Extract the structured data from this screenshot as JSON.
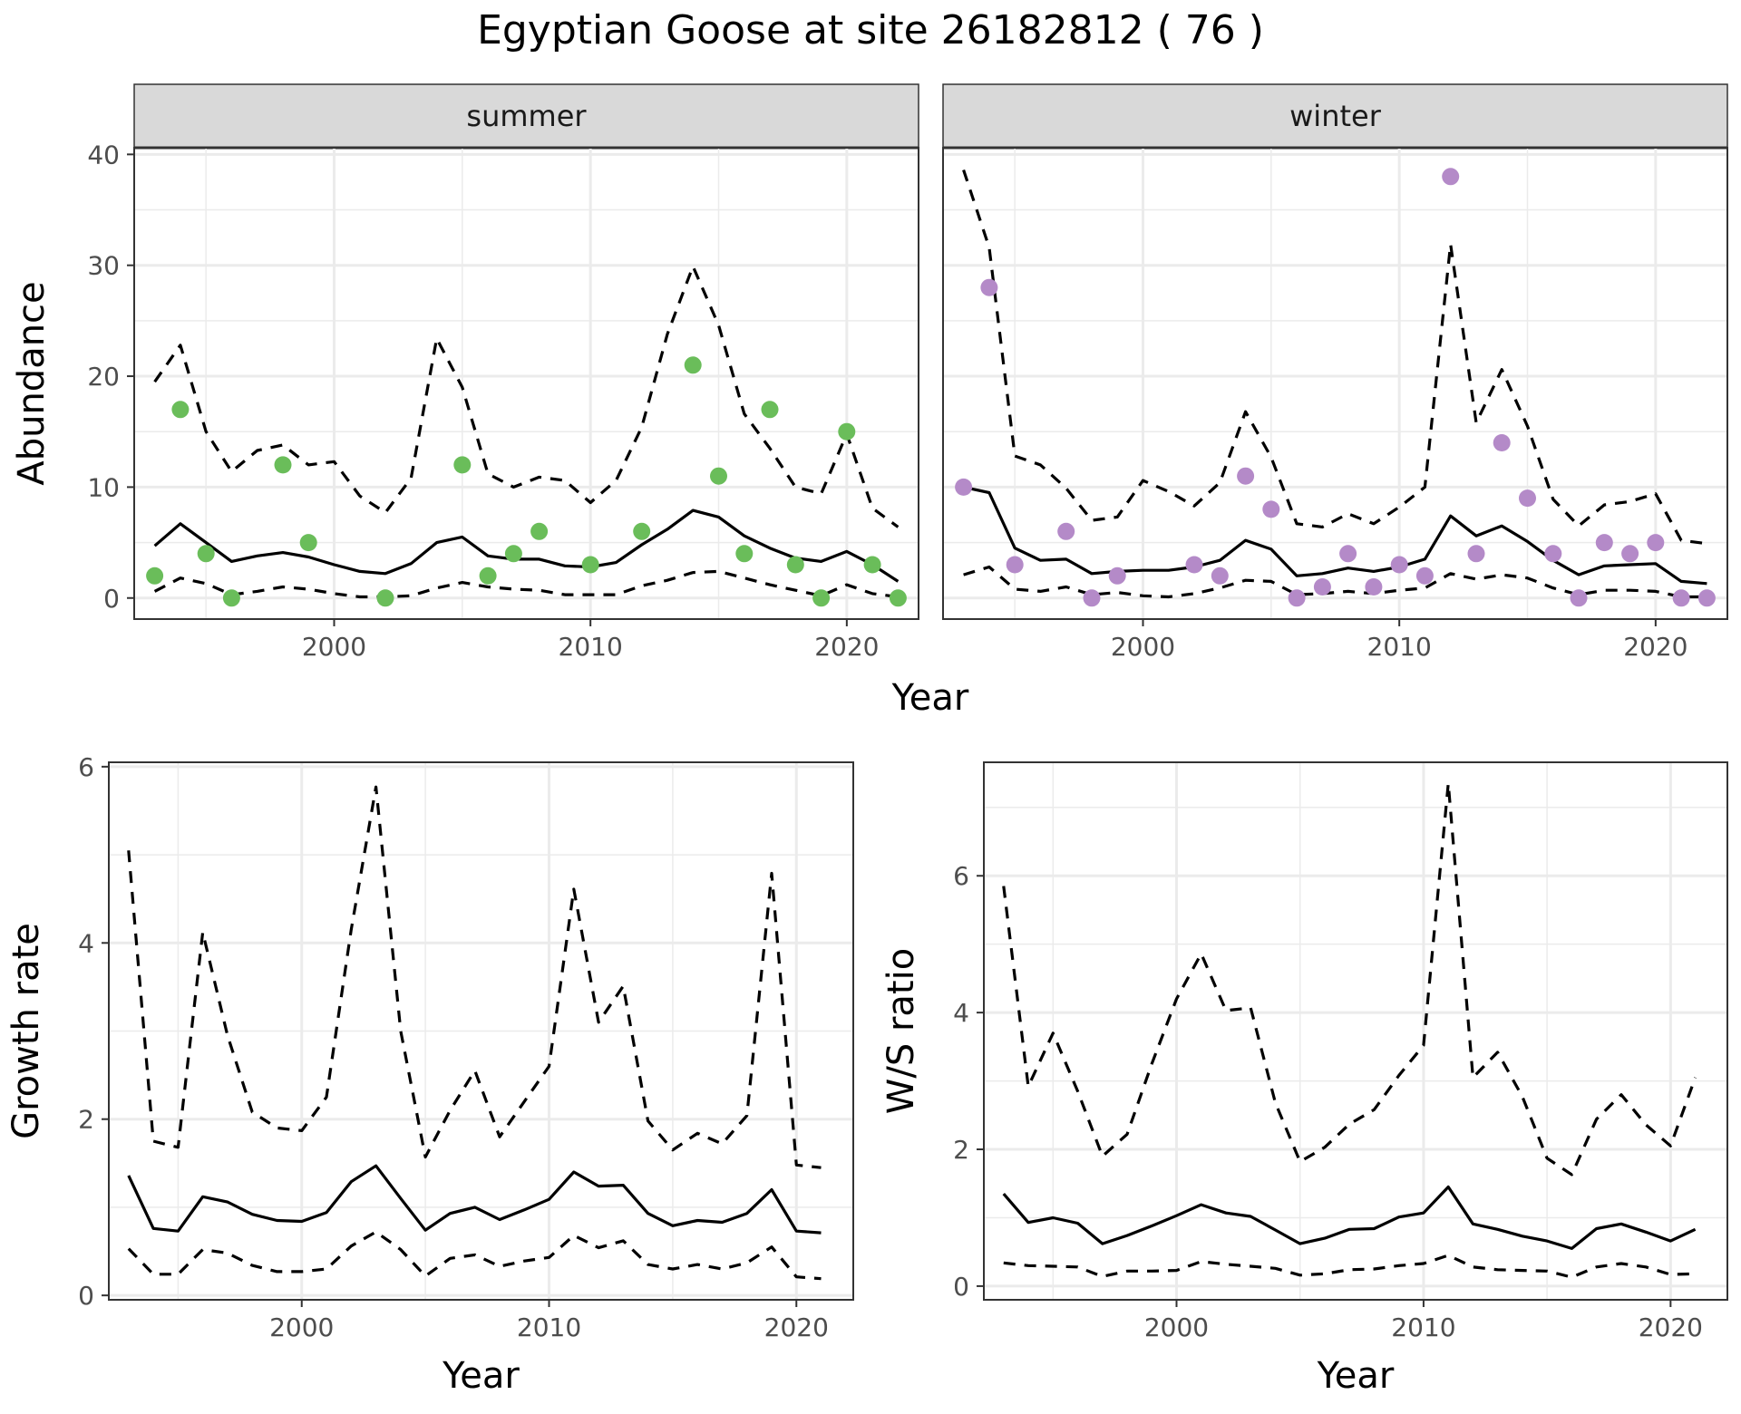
{
  "title": "Egyptian Goose at site 26182812 ( 76 )",
  "colors": {
    "summer_points": "#6abd5a",
    "winter_points": "#b48ac8",
    "line": "#000000",
    "grid": "#ebebeb",
    "strip_fill": "#d9d9d9"
  },
  "chart_data": [
    {
      "type": "line",
      "panel": "abundance-summer",
      "facet": "summer",
      "xlabel": "Year",
      "ylabel": "Abundance",
      "xlim": [
        1992.2,
        2022.8
      ],
      "ylim": [
        -1.9,
        40.6
      ],
      "x_ticks": [
        2000,
        2010,
        2020
      ],
      "y_ticks": [
        0,
        10,
        20,
        30,
        40
      ],
      "grid": true,
      "points": {
        "x": [
          1993,
          1994,
          1995,
          1996,
          1998,
          1999,
          2002,
          2005,
          2006,
          2007,
          2008,
          2010,
          2012,
          2014,
          2015,
          2016,
          2017,
          2018,
          2019,
          2020,
          2021,
          2022
        ],
        "y": [
          2,
          17,
          4,
          0,
          12,
          5,
          0,
          12,
          2,
          4,
          6,
          3,
          6,
          21,
          11,
          4,
          17,
          3,
          0,
          15,
          3,
          0
        ]
      },
      "series": [
        {
          "role": "estimate",
          "x": [
            1993,
            1994,
            1995,
            1996,
            1997,
            1998,
            1999,
            2000,
            2001,
            2002,
            2003,
            2004,
            2005,
            2006,
            2007,
            2008,
            2009,
            2010,
            2011,
            2012,
            2013,
            2014,
            2015,
            2016,
            2017,
            2018,
            2019,
            2020,
            2021,
            2022
          ],
          "y": [
            4.7,
            6.7,
            5.0,
            3.3,
            3.8,
            4.1,
            3.7,
            3.0,
            2.4,
            2.2,
            3.1,
            5.0,
            5.5,
            3.8,
            3.5,
            3.5,
            2.9,
            2.8,
            3.2,
            4.8,
            6.2,
            7.9,
            7.3,
            5.6,
            4.5,
            3.6,
            3.3,
            4.2,
            3.0,
            1.5
          ]
        },
        {
          "role": "upper",
          "x": [
            1993,
            1994,
            1995,
            1996,
            1997,
            1998,
            1999,
            2000,
            2001,
            2002,
            2003,
            2004,
            2005,
            2006,
            2007,
            2008,
            2009,
            2010,
            2011,
            2012,
            2013,
            2014,
            2015,
            2016,
            2017,
            2018,
            2019,
            2020,
            2021,
            2022
          ],
          "y": [
            19.5,
            22.8,
            15.0,
            11.4,
            13.3,
            13.8,
            12.0,
            12.3,
            9.2,
            7.7,
            10.8,
            23.4,
            19.0,
            11.2,
            10.0,
            10.9,
            10.6,
            8.6,
            10.6,
            15.4,
            23.8,
            29.9,
            24.6,
            16.6,
            13.5,
            10.0,
            9.4,
            14.8,
            8.1,
            6.4
          ]
        },
        {
          "role": "lower",
          "x": [
            1993,
            1994,
            1995,
            1996,
            1997,
            1998,
            1999,
            2000,
            2001,
            2002,
            2003,
            2004,
            2005,
            2006,
            2007,
            2008,
            2009,
            2010,
            2011,
            2012,
            2013,
            2014,
            2015,
            2016,
            2017,
            2018,
            2019,
            2020,
            2021,
            2022
          ],
          "y": [
            0.6,
            1.8,
            1.3,
            0.3,
            0.6,
            1.0,
            0.8,
            0.4,
            0.1,
            0.1,
            0.2,
            0.9,
            1.4,
            1.0,
            0.8,
            0.7,
            0.3,
            0.3,
            0.3,
            1.1,
            1.6,
            2.3,
            2.4,
            1.8,
            1.2,
            0.7,
            0.2,
            1.2,
            0.4,
            0.1
          ]
        }
      ]
    },
    {
      "type": "line",
      "panel": "abundance-winter",
      "facet": "winter",
      "xlabel": "Year",
      "ylabel": "Abundance",
      "xlim": [
        1992.2,
        2022.8
      ],
      "ylim": [
        -1.9,
        40.6
      ],
      "x_ticks": [
        2000,
        2010,
        2020
      ],
      "y_ticks": [
        0,
        10,
        20,
        30,
        40
      ],
      "grid": true,
      "points": {
        "x": [
          1993,
          1994,
          1995,
          1997,
          1998,
          1999,
          2002,
          2003,
          2004,
          2005,
          2006,
          2007,
          2008,
          2009,
          2010,
          2011,
          2012,
          2013,
          2014,
          2015,
          2016,
          2017,
          2018,
          2019,
          2020,
          2021,
          2022
        ],
        "y": [
          10,
          28,
          3,
          6,
          0,
          2,
          3,
          2,
          11,
          8,
          0,
          1,
          4,
          1,
          3,
          2,
          38,
          4,
          14,
          9,
          4,
          0,
          5,
          4,
          5,
          0,
          0
        ]
      },
      "series": [
        {
          "role": "estimate",
          "x": [
            1993,
            1994,
            1995,
            1996,
            1997,
            1998,
            1999,
            2000,
            2001,
            2002,
            2003,
            2004,
            2005,
            2006,
            2007,
            2008,
            2009,
            2010,
            2011,
            2012,
            2013,
            2014,
            2015,
            2016,
            2017,
            2018,
            2019,
            2020,
            2021,
            2022
          ],
          "y": [
            10.0,
            9.5,
            4.5,
            3.4,
            3.5,
            2.2,
            2.4,
            2.5,
            2.5,
            2.8,
            3.4,
            5.2,
            4.4,
            2.0,
            2.2,
            2.7,
            2.4,
            2.8,
            3.5,
            7.4,
            5.6,
            6.5,
            5.1,
            3.4,
            2.1,
            2.9,
            3.0,
            3.1,
            1.5,
            1.3
          ]
        },
        {
          "role": "upper",
          "x": [
            1993,
            1994,
            1995,
            1996,
            1997,
            1998,
            1999,
            2000,
            2001,
            2002,
            2003,
            2004,
            2005,
            2006,
            2007,
            2008,
            2009,
            2010,
            2011,
            2012,
            2013,
            2014,
            2015,
            2016,
            2017,
            2018,
            2019,
            2020,
            2021,
            2022
          ],
          "y": [
            38.6,
            31.6,
            12.8,
            12.0,
            9.9,
            7.0,
            7.3,
            10.6,
            9.6,
            8.3,
            10.4,
            16.8,
            12.7,
            6.7,
            6.4,
            7.6,
            6.7,
            8.2,
            10.0,
            31.9,
            15.8,
            20.6,
            15.5,
            8.9,
            6.5,
            8.4,
            8.7,
            9.4,
            5.2,
            4.9
          ]
        },
        {
          "role": "lower",
          "x": [
            1993,
            1994,
            1995,
            1996,
            1997,
            1998,
            1999,
            2000,
            2001,
            2002,
            2003,
            2004,
            2005,
            2006,
            2007,
            2008,
            2009,
            2010,
            2011,
            2012,
            2013,
            2014,
            2015,
            2016,
            2017,
            2018,
            2019,
            2020,
            2021,
            2022
          ],
          "y": [
            2.1,
            2.8,
            0.8,
            0.6,
            1.0,
            0.3,
            0.5,
            0.2,
            0.1,
            0.4,
            0.9,
            1.6,
            1.5,
            0.3,
            0.4,
            0.6,
            0.4,
            0.7,
            0.9,
            2.2,
            1.7,
            2.1,
            1.8,
            0.9,
            0.3,
            0.7,
            0.7,
            0.6,
            0.1,
            0.1
          ]
        }
      ]
    },
    {
      "type": "line",
      "panel": "growth-rate",
      "xlabel": "Year",
      "ylabel": "Growth rate",
      "xlim": [
        1992.2,
        2022.3
      ],
      "ylim": [
        -0.05,
        6.05
      ],
      "x_ticks": [
        2000,
        2010,
        2020
      ],
      "y_ticks": [
        0,
        2,
        4,
        6
      ],
      "grid": true,
      "series": [
        {
          "role": "estimate",
          "x": [
            1993,
            1994,
            1995,
            1996,
            1997,
            1998,
            1999,
            2000,
            2001,
            2002,
            2003,
            2004,
            2005,
            2006,
            2007,
            2008,
            2009,
            2010,
            2011,
            2012,
            2013,
            2014,
            2015,
            2016,
            2017,
            2018,
            2019,
            2020,
            2021
          ],
          "y": [
            1.36,
            0.76,
            0.73,
            1.12,
            1.06,
            0.92,
            0.85,
            0.84,
            0.94,
            1.29,
            1.47,
            1.1,
            0.74,
            0.93,
            1.0,
            0.86,
            0.97,
            1.09,
            1.4,
            1.24,
            1.25,
            0.93,
            0.79,
            0.85,
            0.83,
            0.93,
            1.2,
            0.73,
            0.71
          ]
        },
        {
          "role": "upper",
          "x": [
            1993,
            1994,
            1995,
            1996,
            1997,
            1998,
            1999,
            2000,
            2001,
            2002,
            2003,
            2004,
            2005,
            2006,
            2007,
            2008,
            2009,
            2010,
            2011,
            2012,
            2013,
            2014,
            2015,
            2016,
            2017,
            2018,
            2019,
            2020,
            2021
          ],
          "y": [
            5.05,
            1.75,
            1.68,
            4.12,
            2.95,
            2.08,
            1.9,
            1.87,
            2.25,
            4.15,
            5.77,
            3.0,
            1.57,
            2.1,
            2.55,
            1.8,
            2.2,
            2.6,
            4.61,
            3.1,
            3.51,
            1.98,
            1.65,
            1.84,
            1.72,
            2.04,
            4.79,
            1.48,
            1.45
          ]
        },
        {
          "role": "lower",
          "x": [
            1993,
            1994,
            1995,
            1996,
            1997,
            1998,
            1999,
            2000,
            2001,
            2002,
            2003,
            2004,
            2005,
            2006,
            2007,
            2008,
            2009,
            2010,
            2011,
            2012,
            2013,
            2014,
            2015,
            2016,
            2017,
            2018,
            2019,
            2020,
            2021
          ],
          "y": [
            0.53,
            0.24,
            0.24,
            0.52,
            0.48,
            0.34,
            0.27,
            0.27,
            0.3,
            0.56,
            0.72,
            0.52,
            0.22,
            0.42,
            0.46,
            0.33,
            0.39,
            0.43,
            0.68,
            0.54,
            0.62,
            0.35,
            0.3,
            0.35,
            0.3,
            0.37,
            0.55,
            0.21,
            0.19
          ]
        }
      ]
    },
    {
      "type": "line",
      "panel": "ws-ratio",
      "xlabel": "Year",
      "ylabel": "W/S ratio",
      "xlim": [
        1992.2,
        2022.3
      ],
      "ylim": [
        -0.2,
        7.66
      ],
      "x_ticks": [
        2000,
        2010,
        2020
      ],
      "y_ticks": [
        0,
        2,
        4,
        6
      ],
      "grid": true,
      "series": [
        {
          "role": "estimate",
          "x": [
            1993,
            1994,
            1995,
            1996,
            1997,
            1998,
            1999,
            2000,
            2001,
            2002,
            2003,
            2004,
            2005,
            2006,
            2007,
            2008,
            2009,
            2010,
            2011,
            2012,
            2013,
            2014,
            2015,
            2016,
            2017,
            2018,
            2019,
            2020,
            2021
          ],
          "y": [
            1.35,
            0.93,
            1.0,
            0.92,
            0.62,
            0.74,
            0.88,
            1.03,
            1.19,
            1.07,
            1.02,
            0.82,
            0.62,
            0.7,
            0.83,
            0.84,
            1.01,
            1.07,
            1.45,
            0.91,
            0.83,
            0.73,
            0.66,
            0.55,
            0.84,
            0.91,
            0.79,
            0.66,
            0.83
          ]
        },
        {
          "role": "upper",
          "x": [
            1993,
            1994,
            1995,
            1996,
            1997,
            1998,
            1999,
            2000,
            2001,
            2002,
            2003,
            2004,
            2005,
            2006,
            2007,
            2008,
            2009,
            2010,
            2011,
            2012,
            2013,
            2014,
            2015,
            2016,
            2017,
            2018,
            2019,
            2020,
            2021
          ],
          "y": [
            5.85,
            2.92,
            3.7,
            2.85,
            1.9,
            2.22,
            3.25,
            4.2,
            4.86,
            4.03,
            4.07,
            2.68,
            1.82,
            2.03,
            2.37,
            2.58,
            3.08,
            3.52,
            7.35,
            3.05,
            3.42,
            2.77,
            1.87,
            1.63,
            2.44,
            2.8,
            2.36,
            2.05,
            3.05
          ]
        },
        {
          "role": "lower",
          "x": [
            1993,
            1994,
            1995,
            1996,
            1997,
            1998,
            1999,
            2000,
            2001,
            2002,
            2003,
            2004,
            2005,
            2006,
            2007,
            2008,
            2009,
            2010,
            2011,
            2012,
            2013,
            2014,
            2015,
            2016,
            2017,
            2018,
            2019,
            2020,
            2021
          ],
          "y": [
            0.34,
            0.3,
            0.29,
            0.28,
            0.14,
            0.22,
            0.22,
            0.23,
            0.36,
            0.32,
            0.29,
            0.26,
            0.16,
            0.18,
            0.24,
            0.25,
            0.3,
            0.33,
            0.45,
            0.28,
            0.24,
            0.23,
            0.22,
            0.13,
            0.28,
            0.33,
            0.28,
            0.17,
            0.18
          ]
        }
      ]
    }
  ]
}
